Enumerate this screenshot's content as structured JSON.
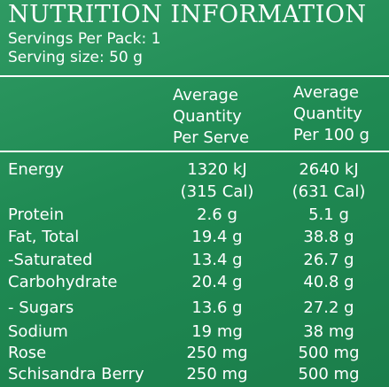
{
  "title": "NUTRITION INFORMATION",
  "servings_per_pack": "Servings Per Pack: 1",
  "serving_size": "Serving size: 50 g",
  "columns": {
    "per_serve": [
      "Average",
      "Quantity",
      "Per Serve"
    ],
    "per_100g": [
      "Average",
      "Quantity",
      "Per 100 g"
    ]
  },
  "rows": [
    {
      "label": "Energy",
      "per_serve": "1320 kJ",
      "per_100g": "2640 kJ"
    },
    {
      "label": "",
      "per_serve": "(315 Cal)",
      "per_100g": "(631 Cal)"
    },
    {
      "label": "Protein",
      "per_serve": "2.6 g",
      "per_100g": "5.1 g"
    },
    {
      "label": "Fat, Total",
      "per_serve": "19.4 g",
      "per_100g": "38.8 g"
    },
    {
      "label": "-Saturated",
      "per_serve": "13.4 g",
      "per_100g": "26.7 g"
    },
    {
      "label": "Carbohydrate",
      "per_serve": "20.4 g",
      "per_100g": "40.8 g"
    },
    {
      "label": "- Sugars",
      "per_serve": "13.6 g",
      "per_100g": "27.2 g"
    },
    {
      "label": "Sodium",
      "per_serve": "19 mg",
      "per_100g": "38 mg"
    },
    {
      "label": "Rose",
      "per_serve": "250 mg",
      "per_100g": "500 mg"
    },
    {
      "label": "Schisandra Berry",
      "per_serve": "250 mg",
      "per_100g": "500 mg"
    }
  ]
}
